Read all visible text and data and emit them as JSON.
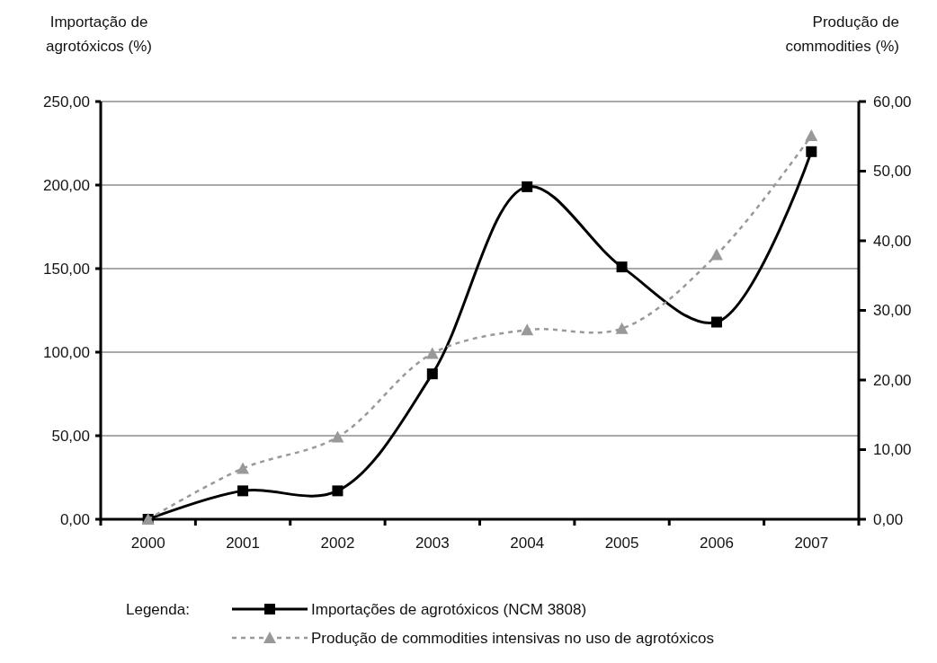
{
  "chart_data": {
    "type": "line",
    "ylabel": "Importação de agrotóxicos (%)",
    "y2label": "Produção de commodities (%)",
    "legend_title": "Legenda:",
    "legend": "bottom",
    "grid": "y",
    "categories": [
      "2000",
      "2001",
      "2002",
      "2003",
      "2004",
      "2005",
      "2006",
      "2007"
    ],
    "ylim": [
      0,
      250
    ],
    "yticks": [
      {
        "value": 0,
        "label": "0,00"
      },
      {
        "value": 50,
        "label": "50,00"
      },
      {
        "value": 100,
        "label": "100,00"
      },
      {
        "value": 150,
        "label": "150,00"
      },
      {
        "value": 200,
        "label": "200,00"
      },
      {
        "value": 250,
        "label": "250,00"
      }
    ],
    "y2lim": [
      0,
      60
    ],
    "y2ticks": [
      {
        "value": 0,
        "label": "0,00"
      },
      {
        "value": 10,
        "label": "10,00"
      },
      {
        "value": 20,
        "label": "20,00"
      },
      {
        "value": 30,
        "label": "30,00"
      },
      {
        "value": 40,
        "label": "40,00"
      },
      {
        "value": 50,
        "label": "50,00"
      },
      {
        "value": 60,
        "label": "60,00"
      }
    ],
    "series": [
      {
        "name": "Importações de agrotóxicos (NCM 3808)",
        "color": "#000000",
        "marker": "square",
        "line_style": "solid",
        "values": [
          0,
          17,
          17,
          87,
          199,
          151,
          118,
          220
        ]
      },
      {
        "name": "Produção de commodities intensivas no uso de agrotóxicos",
        "color": "#999999",
        "marker": "triangle",
        "line_style": "dashed",
        "axis": "y2",
        "values": [
          0,
          7.3,
          11.8,
          23.8,
          27.2,
          27.4,
          38.0,
          55.1
        ]
      }
    ]
  }
}
